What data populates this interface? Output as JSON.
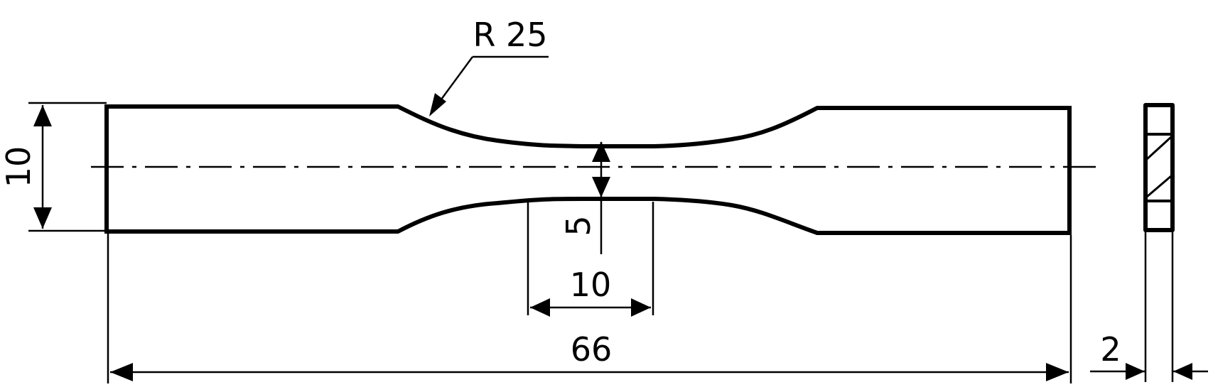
{
  "drawing": {
    "radius_label": "R 25",
    "width_label": "10",
    "neck_half_width_label": "5",
    "gauge_length_label": "10",
    "total_length_label": "66",
    "thickness_label": "2"
  }
}
